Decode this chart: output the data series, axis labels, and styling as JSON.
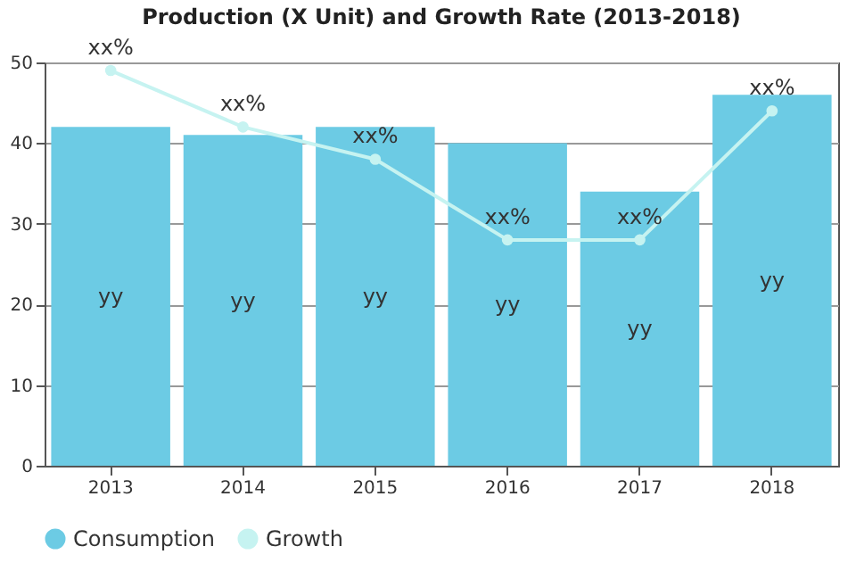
{
  "chart_data": {
    "type": "bar",
    "title": "Production (X Unit) and Growth Rate (2013-2018)",
    "categories": [
      "2013",
      "2014",
      "2015",
      "2016",
      "2017",
      "2018"
    ],
    "series": [
      {
        "name": "Consumption",
        "color": "#6ccbe4",
        "values": [
          42,
          41,
          42,
          40,
          34,
          46
        ],
        "value_labels": [
          "yy",
          "yy",
          "yy",
          "yy",
          "yy",
          "yy"
        ]
      },
      {
        "name": "Growth",
        "type": "line",
        "color": "#c6f3f1",
        "marker": "circle",
        "values": [
          49,
          42,
          38,
          28,
          28,
          44
        ],
        "value_labels": [
          "xx%",
          "xx%",
          "xx%",
          "xx%",
          "xx%",
          "xx%"
        ]
      }
    ],
    "ylim": [
      0,
      50
    ],
    "yticks": [
      0,
      10,
      20,
      30,
      40,
      50
    ],
    "grid": "y",
    "legend": "bottom"
  }
}
